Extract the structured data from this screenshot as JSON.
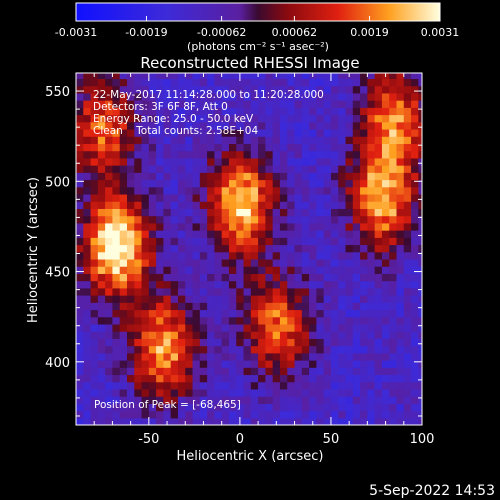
{
  "colorbar": {
    "tick_labels": [
      "-0.0031",
      "-0.0019",
      "-0.00062",
      "0.00062",
      "0.0019",
      "0.0031"
    ],
    "unit_label": "(photons cm⁻² s⁻¹ asec⁻²)",
    "range": [
      -0.0031,
      0.0031
    ]
  },
  "chart_data": {
    "type": "heatmap",
    "title": "Reconstructed RHESSI Image",
    "xlabel": "Heliocentric X (arcsec)",
    "ylabel": "Heliocentric Y (arcsec)",
    "xlim": [
      -90,
      100
    ],
    "ylim": [
      365,
      560
    ],
    "x_ticks": [
      -50,
      0,
      50,
      100
    ],
    "y_ticks": [
      400,
      450,
      500,
      550
    ],
    "annotations": [
      "22-May-2017 11:14:28.000 to 11:20:28.000",
      "Detectors: 3F 6F 8F, Att 0",
      "Energy Range: 25.0 - 50.0 keV",
      "Clean    Total counts: 2.58E+04"
    ],
    "peak_label": "Position of Peak = [-68,465]",
    "sources": [
      {
        "x": -68,
        "y": 465,
        "intensity": 0.0031
      },
      {
        "x": 0,
        "y": 488,
        "intensity": 0.0025
      },
      {
        "x": 78,
        "y": 490,
        "intensity": 0.0021
      },
      {
        "x": 85,
        "y": 535,
        "intensity": 0.0016
      },
      {
        "x": -42,
        "y": 408,
        "intensity": 0.002
      },
      {
        "x": 20,
        "y": 420,
        "intensity": 0.0015
      },
      {
        "x": -75,
        "y": 530,
        "intensity": 0.0014
      }
    ]
  },
  "footer": {
    "timestamp": "5-Sep-2022 14:53"
  }
}
